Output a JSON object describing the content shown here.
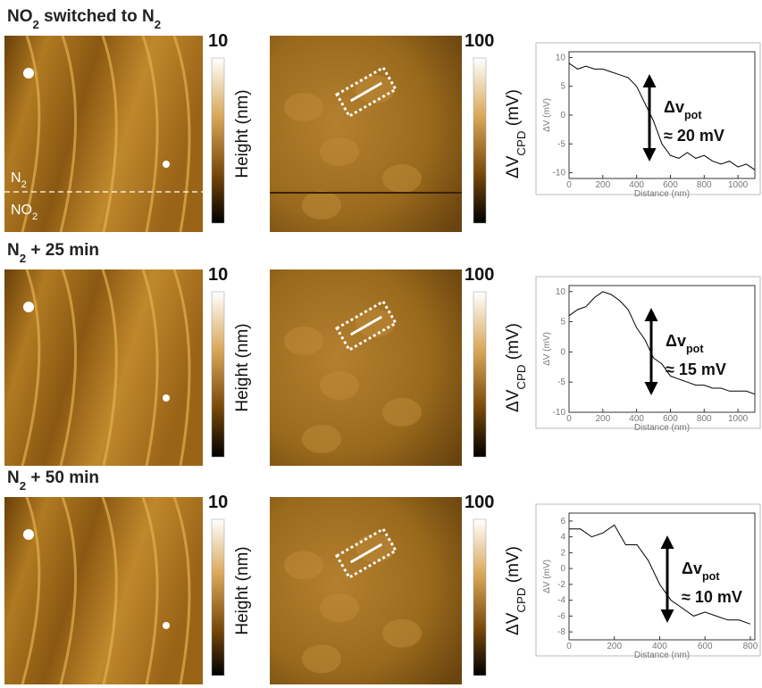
{
  "rows": [
    {
      "title": [
        "NO",
        "2",
        " switched to N",
        "2"
      ],
      "height_max": "10",
      "height_label": "Height (nm)",
      "cpd_max": "100",
      "cpd_label": [
        "ΔV",
        "CPD",
        " (mV)"
      ],
      "overlays": [
        [
          "N",
          "2"
        ],
        [
          "NO",
          "2"
        ]
      ]
    },
    {
      "title": [
        "N",
        "2",
        " + 25 min"
      ],
      "height_max": "10",
      "height_label": "Height (nm)",
      "cpd_max": "100",
      "cpd_label": [
        "ΔV",
        "CPD",
        " (mV)"
      ]
    },
    {
      "title": [
        "N",
        "2",
        " + 50 min"
      ],
      "height_max": "10",
      "height_label": "Height (nm)",
      "cpd_max": "100",
      "cpd_label": [
        "ΔV",
        "CPD",
        " (mV)"
      ]
    }
  ],
  "chart_data": [
    {
      "type": "line",
      "color": "#000000",
      "x_label": "Distance (nm)",
      "y_label": "ΔV (mV)",
      "x": [
        0,
        50,
        100,
        150,
        200,
        250,
        300,
        350,
        400,
        450,
        500,
        550,
        600,
        650,
        700,
        750,
        800,
        850,
        900,
        950,
        1000,
        1050,
        1100
      ],
      "values": [
        9,
        8,
        8.5,
        8,
        8,
        7.5,
        7,
        6.5,
        5,
        2,
        -1,
        -5,
        -7,
        -7.5,
        -6.5,
        -7.5,
        -7,
        -8,
        -8.5,
        -8,
        -9,
        -8.5,
        -9.5
      ],
      "xlim": [
        0,
        1100
      ],
      "ylim": [
        -11,
        11
      ],
      "xticks": [
        0,
        200,
        400,
        600,
        800,
        1000
      ],
      "yticks": [
        -10,
        -5,
        0,
        5,
        10
      ],
      "annotation": {
        "label": [
          "Δv",
          "pot"
        ],
        "value": "≈ 20 mV"
      }
    },
    {
      "type": "line",
      "color": "#000000",
      "x_label": "Distance (nm)",
      "y_label": "ΔV (mV)",
      "x": [
        0,
        50,
        100,
        150,
        200,
        250,
        300,
        350,
        400,
        450,
        500,
        550,
        600,
        650,
        700,
        750,
        800,
        850,
        900,
        950,
        1000,
        1050,
        1100
      ],
      "values": [
        6,
        7,
        7.5,
        9,
        10,
        9.5,
        8.5,
        7,
        4,
        2,
        -1,
        -2,
        -4,
        -4.5,
        -5,
        -5.5,
        -5.5,
        -6,
        -6,
        -6.5,
        -6.5,
        -6.5,
        -7
      ],
      "xlim": [
        0,
        1100
      ],
      "ylim": [
        -10,
        11
      ],
      "xticks": [
        0,
        200,
        400,
        600,
        800,
        1000
      ],
      "yticks": [
        -10,
        -5,
        0,
        5,
        10
      ],
      "annotation": {
        "label": [
          "Δv",
          "pot"
        ],
        "value": "≈ 15 mV"
      }
    },
    {
      "type": "line",
      "color": "#000000",
      "x_label": "Distance (nm)",
      "y_label": "ΔV (mV)",
      "x": [
        0,
        50,
        100,
        150,
        200,
        250,
        300,
        350,
        400,
        450,
        500,
        550,
        600,
        650,
        700,
        750,
        800
      ],
      "values": [
        5,
        5,
        4,
        4.5,
        5.5,
        3,
        3,
        1,
        -2,
        -4,
        -5,
        -6,
        -5.5,
        -6,
        -6.5,
        -6.5,
        -7
      ],
      "xlim": [
        0,
        820
      ],
      "ylim": [
        -9,
        7
      ],
      "xticks": [
        0,
        200,
        400,
        600,
        800
      ],
      "yticks": [
        -8,
        -6,
        -4,
        -2,
        0,
        2,
        4,
        6
      ],
      "annotation": {
        "label": [
          "Δv",
          "pot"
        ],
        "value": "≈ 10 mV"
      }
    }
  ]
}
